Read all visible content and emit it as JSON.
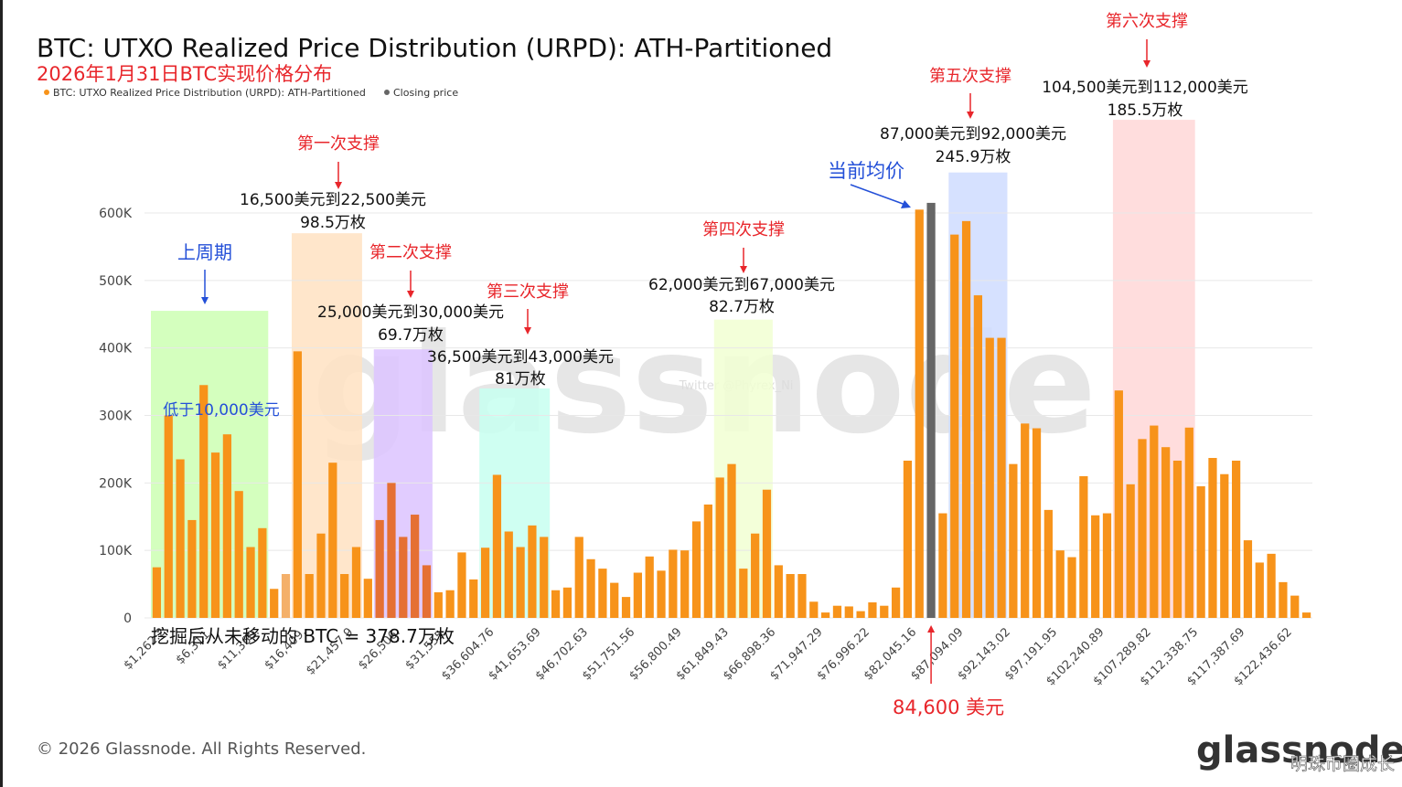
{
  "chart_data": {
    "type": "bar",
    "title": "BTC: UTXO Realized Price Distribution (URPD): ATH-Partitioned",
    "subtitle": "2026年1月31日BTC实现价格分布",
    "legend": [
      {
        "label": "BTC: UTXO Realized Price Distribution (URPD): ATH-Partitioned",
        "color": "#f7931a"
      },
      {
        "label": "Closing price",
        "color": "#666666"
      }
    ],
    "ylim": [
      0,
      650000
    ],
    "yticks": [
      {
        "v": 0,
        "label": "0"
      },
      {
        "v": 100000,
        "label": "100K"
      },
      {
        "v": 200000,
        "label": "200K"
      },
      {
        "v": 300000,
        "label": "300K"
      },
      {
        "v": 400000,
        "label": "400K"
      },
      {
        "v": 500000,
        "label": "500K"
      },
      {
        "v": 600000,
        "label": "600K"
      }
    ],
    "xtick_labels": [
      "$1,262.2",
      "$6,311.",
      "$11,360.",
      "$16,409.",
      "$21,457.9",
      "$26,506.",
      "$31,555.",
      "$36,604.76",
      "$41,653.69",
      "$46,702.63",
      "$51,751.56",
      "$56,800.49",
      "$61,849.43",
      "$66,898.36",
      "$71,947.29",
      "$76,996.22",
      "$82,045.16",
      "$87,094.09",
      "$92,143.02",
      "$97,191.95",
      "$102,240.89",
      "$107,289.82",
      "$112,338.75",
      "$117,387.69",
      "$122,436.62"
    ],
    "values": [
      75000,
      300000,
      235000,
      145000,
      345000,
      245000,
      272000,
      188000,
      105000,
      133000,
      43000,
      65000,
      395000,
      65000,
      125000,
      230000,
      65000,
      105000,
      58000,
      145000,
      200000,
      120000,
      153000,
      78000,
      38000,
      41000,
      97000,
      57000,
      104000,
      212000,
      128000,
      105000,
      137000,
      120000,
      41000,
      45000,
      120000,
      87000,
      73000,
      52000,
      31000,
      67000,
      91000,
      70000,
      101000,
      100000,
      143000,
      168000,
      208000,
      228000,
      73000,
      125000,
      190000,
      78000,
      65000,
      65000,
      24000,
      8000,
      18000,
      17000,
      10000,
      23000,
      18000,
      45000,
      233000,
      605000,
      615000,
      155000,
      568000,
      588000,
      478000,
      415000,
      415000,
      228000,
      288000,
      281000,
      160000,
      100000,
      90000,
      210000,
      152000,
      155000,
      337000,
      198000,
      265000,
      285000,
      253000,
      233000,
      282000,
      195000,
      237000,
      213000,
      233000,
      115000,
      82000,
      95000,
      53000,
      33000,
      8000
    ],
    "closing_price_bar_index": 66,
    "closing_price_annotation": "84,600 美元",
    "regions": [
      {
        "name": "上周期",
        "arrow_label": "上周期",
        "inner_label": "低于10,000美元",
        "color": "#ccffb3",
        "start": 0,
        "end": 9,
        "ymax": 455000
      },
      {
        "name": "第一次支撑",
        "label": "第一次支撑",
        "range": "16,500美元到22,500美元",
        "amount": "98.5万枚",
        "color": "#ffe2c2",
        "start": 12,
        "end": 17,
        "ymax": 570000
      },
      {
        "name": "第二次支撑",
        "label": "第二次支撑",
        "range": "25,000美元到30,000美元",
        "amount": "69.7万枚",
        "color": "#dcc3ff",
        "start": 19,
        "end": 23,
        "ymax": 398000
      },
      {
        "name": "第三次支撑",
        "label": "第三次支撑",
        "range": "36,500美元到43,000美元",
        "amount": "81万枚",
        "color": "#c7fff0",
        "start": 28,
        "end": 33,
        "ymax": 340000
      },
      {
        "name": "第四次支撑",
        "label": "第四次支撑",
        "range": "62,000美元到67,000美元",
        "amount": "82.7万枚",
        "color": "#f1ffd2",
        "start": 48,
        "end": 52,
        "ymax": 442000
      },
      {
        "name": "第五次支撑",
        "label": "第五次支撑",
        "range": "87,000美元到92,000美元",
        "amount": "245.9万枚",
        "color": "#cfdcff",
        "start": 68,
        "end": 72,
        "ymax": 660000
      },
      {
        "name": "第六次支撑",
        "label": "第六次支撑",
        "range": "104,500美元到112,000美元",
        "amount": "185.5万枚",
        "color": "#ffd7d7",
        "start": 82,
        "end": 88,
        "ymax": 738000
      }
    ],
    "avg_price_label": "当前均价",
    "bottom_note": "挖掘后从未移动的 BTC = 378.7万枚",
    "watermark": "glassnode",
    "twitter_watermark": "Twitter @Phyrex_Ni"
  },
  "footer": {
    "copyright": "© 2026 Glassnode. All Rights Reserved.",
    "logo": "glassnode",
    "credit": "明珠币圈成长"
  }
}
